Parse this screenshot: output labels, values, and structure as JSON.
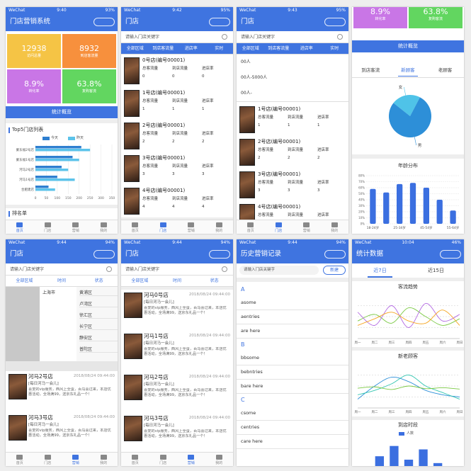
{
  "tabbar": [
    "首页",
    "门店",
    "营销",
    "我的"
  ],
  "screens": [
    {
      "kind": "home",
      "status": {
        "carrier": "WeChat",
        "time": "9:40",
        "battery": "93%"
      },
      "title": "门店营销系统",
      "stats": [
        {
          "value": "12938",
          "label": "访问总量",
          "color": "#f5c445"
        },
        {
          "value": "8932",
          "label": "到店客流量",
          "color": "#f7903d"
        },
        {
          "value": "8.9%",
          "label": "转化率",
          "color": "#c976e6"
        },
        {
          "value": "63.8%",
          "label": "复购客流",
          "color": "#62d660"
        }
      ],
      "button": "统计概览",
      "top5": {
        "title": "Top5门店列表",
        "categories": [
          "蒙东福2号店",
          "蒙东福1号店",
          "河马2号店",
          "河马1号店",
          "合肥建店"
        ],
        "series": [
          {
            "name": "今天",
            "color": "#2e7fd0",
            "values": [
              210,
              170,
              120,
              100,
              60
            ]
          },
          {
            "name": "昨天",
            "color": "#5cc3ea",
            "values": [
              250,
              200,
              150,
              180,
              90
            ]
          }
        ],
        "xlim": [
          0,
          350
        ],
        "xticks": [
          0,
          50,
          100,
          150,
          200,
          250,
          300,
          350
        ]
      },
      "section": "排名单",
      "active_tab": 0
    },
    {
      "kind": "stores",
      "status": {
        "carrier": "WeChat",
        "time": "9:42",
        "battery": "95%"
      },
      "title": "门店",
      "search": "请输入门店关键字",
      "filters": [
        "全部区域",
        "到店客流量",
        "进店率",
        "实时"
      ],
      "fields": [
        "总客流量",
        "到店流量",
        "进店率"
      ],
      "items": [
        {
          "name": "0号店(编号00001)",
          "values": [
            0,
            0,
            0
          ]
        },
        {
          "name": "1号店(编号00001)",
          "values": [
            1,
            1,
            1
          ]
        },
        {
          "name": "2号店(编号00001)",
          "values": [
            2,
            2,
            2
          ]
        },
        {
          "name": "3号店(编号00001)",
          "values": [
            3,
            3,
            3
          ]
        },
        {
          "name": "4号店(编号00001)",
          "values": [
            4,
            4,
            4
          ]
        }
      ],
      "active_tab": 1
    },
    {
      "kind": "storesFilter",
      "status": {
        "carrier": "WeChat",
        "time": "9:43",
        "battery": "95%"
      },
      "title": "门店",
      "search": "请输入门店关键字",
      "filters": [
        "全部区域",
        "到店客流量",
        "进店率",
        "实时"
      ],
      "dropdown": [
        "00人",
        "00人-5000人",
        "00人-"
      ],
      "fields": [
        "总客流量",
        "到店流量",
        "进店率"
      ],
      "items": [
        {
          "name": "1号店(编号00001)",
          "values": [
            1,
            1,
            1
          ]
        },
        {
          "name": "2号店(编号00001)",
          "values": [
            2,
            2,
            2
          ]
        },
        {
          "name": "3号店(编号00001)",
          "values": [
            3,
            3,
            3
          ]
        },
        {
          "name": "4号店(编号00001)",
          "values": [
            3,
            3,
            3
          ]
        }
      ],
      "active_tab": 1
    },
    {
      "kind": "overview",
      "stats": [
        {
          "value": "8.9%",
          "label": "转化率",
          "color": "#c976e6"
        },
        {
          "value": "63.8%",
          "label": "复购客流",
          "color": "#62d660"
        }
      ],
      "button": "统计概览",
      "tabs": [
        "到店客流",
        "新顾客",
        "老顾客"
      ],
      "active": 1,
      "pie": {
        "labels": [
          "女",
          "男"
        ],
        "values": [
          22,
          78
        ],
        "colors": [
          "#4fc3e8",
          "#2d8fd8"
        ]
      },
      "age": {
        "title": "年龄分布",
        "categories": [
          "18-24岁",
          null,
          "25-34岁",
          null,
          "45-54岁",
          null,
          "55-64岁"
        ],
        "values": [
          58,
          52,
          66,
          68,
          60,
          40,
          22
        ],
        "color": "#3b6fe0",
        "ylim": [
          0,
          80
        ],
        "yticks": [
          {
            "value": 0,
            "label": "0%"
          },
          {
            "value": 10,
            "label": "10%"
          },
          {
            "value": 20,
            "label": "20%"
          },
          {
            "value": 30,
            "label": "30%"
          },
          {
            "value": 40,
            "label": "40%"
          },
          {
            "value": 50,
            "label": "50%"
          },
          {
            "value": 60,
            "label": "60%"
          },
          {
            "value": 70,
            "label": "70%"
          },
          {
            "value": 80,
            "label": "80%"
          }
        ]
      }
    },
    {
      "kind": "region",
      "status": {
        "carrier": "WeChat",
        "time": "9:44",
        "battery": "94%"
      },
      "title": "门店",
      "search": "请输入门店关键字",
      "filters": [
        "全部区域",
        "时间",
        "状态"
      ],
      "cities": [
        "上海市"
      ],
      "districts": [
        "黄浦区",
        "卢湾区",
        "徐汇区",
        "长宁区",
        "静安区",
        "普陀区"
      ],
      "items": [
        {
          "name": "河马2号店",
          "time": "2018/08/24 09:44:00",
          "tag": "[每日河马一会儿]",
          "desc": "喜爱的vip服务，西风上全蛋，百马喜过来，本店优惠活动，全场满99，送京东礼品一个！"
        },
        {
          "name": "河马3号店",
          "time": "2018/08/24 09:44:00",
          "tag": "[每日河马一会儿]",
          "desc": "喜爱的vip服务，西风上全蛋，百马喜过来，本店优惠活动，全场满99，送京东礼品一个！"
        }
      ],
      "active_tab": 2
    },
    {
      "kind": "feed",
      "status": {
        "carrier": "WeChat",
        "time": "9:44",
        "battery": "94%"
      },
      "title": "门店",
      "search": "请输入门店关键字",
      "filters": [
        "全部区域",
        "时间",
        "状态"
      ],
      "items": [
        {
          "name": "河马0号店",
          "time": "2018/08/24 09:44:00",
          "tag": "[每日河马一会儿]",
          "desc": "喜爱的vip服务，西风上全蛋，百马喜过来，本店优惠活动，全场满99，送京东礼品一个！"
        },
        {
          "name": "河马1号店",
          "time": "2018/08/24 09:44:00",
          "tag": "[每日河马一会儿]",
          "desc": "喜爱的vip服务，西风上全蛋，百马喜过来，本店优惠活动，全场满99，送京东礼品一个！"
        },
        {
          "name": "河马2号店",
          "time": "2018/08/24 09:44:00",
          "tag": "[每日河马一会儿]",
          "desc": "喜爱的vip服务，西风上全蛋，百马喜过来，本店优惠活动，全场满99，送京东礼品一个！"
        },
        {
          "name": "河马3号店",
          "time": "2018/08/24 09:44:00",
          "tag": "[每日河马一会儿]",
          "desc": "喜爱的vip服务，西风上全蛋，百马喜过来，本店优惠活动，全场满99，送京东礼品一个！"
        }
      ],
      "active_tab": 2
    },
    {
      "kind": "history",
      "status": {
        "carrier": "WeChat",
        "time": "9:44",
        "battery": "94%"
      },
      "title": "历史营销记录",
      "search": "请输入门店关键字",
      "button": "新建",
      "groups": [
        {
          "letter": "A",
          "entries": [
            "asome",
            "aentries",
            "are here"
          ]
        },
        {
          "letter": "B",
          "entries": [
            "bbsome",
            "bebntries",
            "bare here"
          ]
        },
        {
          "letter": "C",
          "entries": [
            "csome",
            "centries",
            "care here"
          ]
        }
      ]
    },
    {
      "kind": "stats",
      "status": {
        "carrier": "WeChat",
        "time": "10:04",
        "battery": "46%"
      },
      "title": "统计数据",
      "tabs": [
        "近7日",
        "近15日"
      ],
      "active": 0,
      "trend": {
        "title": "客流趋势",
        "categories": [
          "周一",
          "周二",
          "周三",
          "周四",
          "周五",
          "周六",
          "周日"
        ],
        "ylim": [
          0,
          100
        ],
        "series": [
          {
            "color": "#7ac943",
            "values": [
              40,
              55,
              35,
              70,
              50,
              30,
              45
            ]
          },
          {
            "color": "#b36ae2",
            "values": [
              60,
              30,
              75,
              25,
              80,
              40,
              55
            ]
          },
          {
            "color": "#f5a623",
            "values": [
              30,
              45,
              60,
              40,
              35,
              65,
              30
            ]
          }
        ]
      },
      "newold": {
        "title": "新老顾客",
        "categories": [
          "周一",
          "周二",
          "周三",
          "周四",
          "周五",
          "周六",
          "周日"
        ],
        "ylim": [
          0,
          100
        ],
        "series": [
          {
            "color": "#2d8fd8",
            "values": [
              20,
              50,
              70,
              60,
              40,
              30,
              25
            ]
          },
          {
            "color": "#32c5b0",
            "values": [
              30,
              40,
              55,
              75,
              50,
              35,
              20
            ]
          },
          {
            "color": "#7ac943",
            "values": [
              45,
              48,
              42,
              50,
              44,
              46,
              43
            ]
          }
        ]
      },
      "hours": {
        "title": "到店时段",
        "series": [
          {
            "name": "人数",
            "color": "#3b6fe0",
            "values": [
              20,
              35,
              50,
              30,
              45,
              25,
              15
            ]
          }
        ],
        "ylim": [
          0,
          60
        ]
      }
    }
  ]
}
